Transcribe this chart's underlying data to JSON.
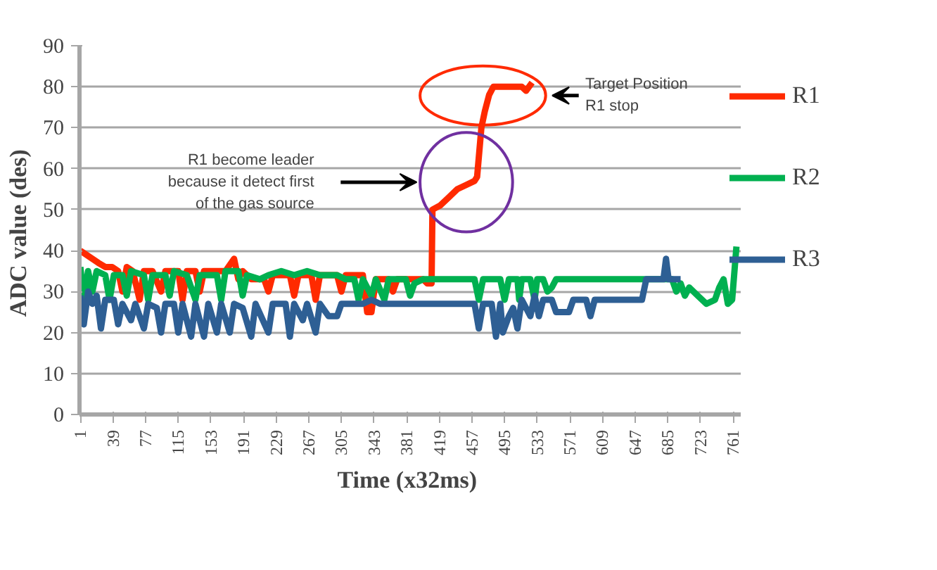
{
  "chart_data": {
    "type": "line",
    "xlabel": "Time  (x32ms)",
    "ylabel": "ADC  value (des)",
    "xlim": [
      0,
      770
    ],
    "xticks": [
      1,
      39,
      77,
      115,
      153,
      191,
      229,
      267,
      305,
      343,
      381,
      419,
      457,
      495,
      533,
      571,
      609,
      647,
      685,
      723,
      761
    ],
    "ylim": [
      0,
      90
    ],
    "yticks": [
      0,
      10,
      20,
      30,
      40,
      50,
      60,
      70,
      80,
      90
    ],
    "grid": "y",
    "legend": "right",
    "marker": "none",
    "line_style": "solid",
    "annotations": [
      "R1 become leader\nbecause it detect first\nof the gas source",
      "Target Position\nR1 stop"
    ],
    "series": [
      {
        "name": "R1",
        "color": "#ff2a00",
        "x": [
          1,
          8,
          15,
          22,
          30,
          38,
          45,
          50,
          55,
          62,
          70,
          75,
          85,
          95,
          100,
          115,
          120,
          125,
          135,
          140,
          145,
          170,
          180,
          185,
          190,
          200,
          215,
          220,
          225,
          245,
          250,
          255,
          270,
          275,
          280,
          300,
          305,
          310,
          330,
          335,
          340,
          345,
          360,
          365,
          370,
          400,
          405,
          410,
          411,
          420,
          430,
          440,
          450,
          460,
          463,
          468,
          472,
          477,
          482,
          500,
          515,
          520,
          527
        ],
        "values": [
          40,
          39,
          38,
          37,
          36,
          36,
          35,
          30,
          36,
          35,
          28,
          35,
          35,
          30,
          35,
          35,
          28,
          35,
          35,
          30,
          35,
          35,
          38,
          33,
          35,
          33,
          33,
          30,
          34,
          34,
          29,
          34,
          34,
          28,
          34,
          34,
          30,
          34,
          34,
          25,
          25,
          33,
          33,
          30,
          33,
          33,
          32,
          32,
          50,
          51,
          53,
          55,
          56,
          57,
          58,
          70,
          74,
          78,
          80,
          80,
          80,
          79,
          81
        ]
      },
      {
        "name": "R2",
        "color": "#00b050",
        "x": [
          1,
          5,
          10,
          15,
          20,
          30,
          35,
          40,
          50,
          55,
          60,
          75,
          80,
          85,
          100,
          105,
          110,
          125,
          135,
          140,
          160,
          165,
          170,
          185,
          190,
          195,
          210,
          220,
          235,
          250,
          265,
          280,
          300,
          310,
          320,
          325,
          330,
          340,
          345,
          355,
          360,
          380,
          385,
          390,
          400,
          410,
          460,
          465,
          470,
          490,
          495,
          500,
          510,
          512,
          515,
          525,
          530,
          533,
          540,
          545,
          550,
          555,
          580,
          600,
          660,
          690,
          695,
          700,
          705,
          710,
          720,
          730,
          740,
          745,
          750,
          755,
          760,
          765
        ],
        "values": [
          36,
          28,
          35,
          30,
          35,
          34,
          28,
          34,
          34,
          29,
          35,
          34,
          28,
          34,
          34,
          29,
          35,
          34,
          28,
          34,
          34,
          28,
          35,
          35,
          29,
          34,
          33,
          34,
          35,
          34,
          35,
          34,
          34,
          33,
          33,
          28,
          33,
          29,
          33,
          28,
          33,
          33,
          29,
          32,
          33,
          33,
          33,
          28,
          33,
          33,
          28,
          33,
          33,
          28,
          33,
          33,
          28,
          33,
          33,
          30,
          31,
          33,
          33,
          33,
          33,
          33,
          30,
          32,
          29,
          31,
          29,
          27,
          28,
          31,
          33,
          27,
          28,
          41
        ]
      },
      {
        "name": "R3",
        "color": "#2e5f94",
        "x": [
          1,
          5,
          10,
          15,
          20,
          25,
          30,
          40,
          45,
          50,
          60,
          65,
          75,
          80,
          90,
          95,
          100,
          110,
          115,
          120,
          130,
          135,
          145,
          150,
          160,
          165,
          175,
          180,
          190,
          200,
          205,
          220,
          225,
          240,
          245,
          250,
          260,
          265,
          275,
          280,
          290,
          300,
          305,
          330,
          340,
          350,
          410,
          460,
          465,
          470,
          480,
          485,
          490,
          493,
          500,
          505,
          510,
          515,
          525,
          530,
          535,
          540,
          550,
          555,
          570,
          575,
          590,
          595,
          600,
          655,
          660,
          680,
          683,
          686,
          700
        ],
        "values": [
          29,
          22,
          30,
          27,
          29,
          21,
          28,
          28,
          22,
          27,
          23,
          27,
          21,
          27,
          26,
          20,
          27,
          27,
          20,
          27,
          19,
          27,
          19,
          27,
          20,
          27,
          20,
          27,
          26,
          19,
          27,
          20,
          27,
          27,
          19,
          27,
          23,
          27,
          20,
          27,
          24,
          24,
          27,
          27,
          28,
          27,
          27,
          27,
          21,
          27,
          27,
          19,
          27,
          20,
          24,
          26,
          21,
          28,
          24,
          29,
          24,
          28,
          28,
          25,
          25,
          28,
          28,
          24,
          28,
          28,
          33,
          33,
          38,
          33,
          33
        ]
      }
    ]
  }
}
